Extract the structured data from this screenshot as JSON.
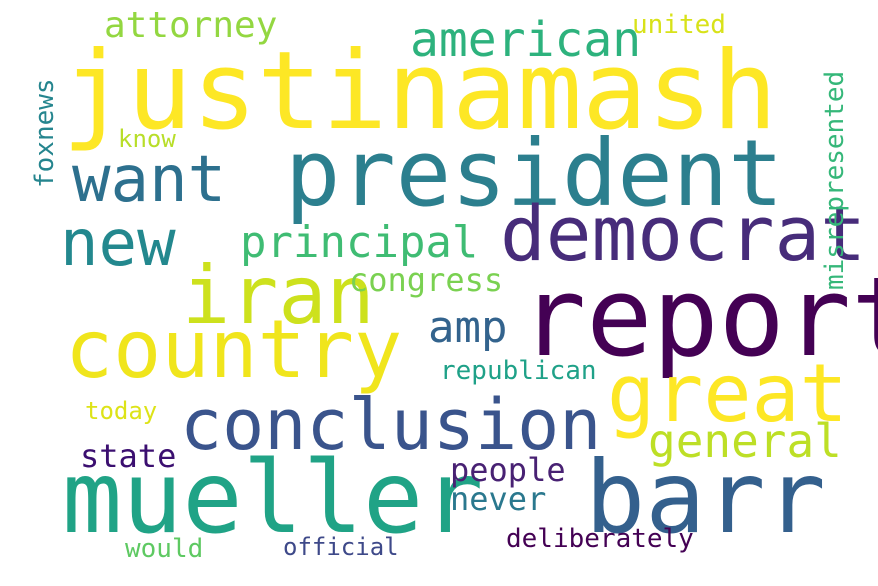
{
  "words": [
    {
      "text": "justinamash",
      "color": "#fde725"
    },
    {
      "text": "president",
      "color": "#2c7f8e"
    },
    {
      "text": "report",
      "color": "#440154"
    },
    {
      "text": "mueller",
      "color": "#20a386"
    },
    {
      "text": "democrat",
      "color": "#472c7a"
    },
    {
      "text": "country",
      "color": "#f0e51c"
    },
    {
      "text": "iran",
      "color": "#cde11d"
    },
    {
      "text": "great",
      "color": "#fde725"
    },
    {
      "text": "conclusion",
      "color": "#3a548c"
    },
    {
      "text": "barr",
      "color": "#34608d"
    },
    {
      "text": "want",
      "color": "#2d708e"
    },
    {
      "text": "new",
      "color": "#23888e"
    },
    {
      "text": "american",
      "color": "#2db27d"
    },
    {
      "text": "principal",
      "color": "#3fbc73"
    },
    {
      "text": "general",
      "color": "#bddf26"
    },
    {
      "text": "attorney",
      "color": "#93d741"
    },
    {
      "text": "amp",
      "color": "#33638d"
    },
    {
      "text": "congress",
      "color": "#7ad151"
    },
    {
      "text": "people",
      "color": "#482173"
    },
    {
      "text": "never",
      "color": "#2a788e"
    },
    {
      "text": "state",
      "color": "#3b0f70"
    },
    {
      "text": "republican",
      "color": "#1fa188"
    },
    {
      "text": "deliberately",
      "color": "#440154"
    },
    {
      "text": "official",
      "color": "#3e4989"
    },
    {
      "text": "would",
      "color": "#5ec962"
    },
    {
      "text": "today",
      "color": "#dde318"
    },
    {
      "text": "united",
      "color": "#d8e219"
    },
    {
      "text": "know",
      "color": "#b8de29"
    },
    {
      "text": "foxnews",
      "color": "#25858e"
    },
    {
      "text": "misrepresented",
      "color": "#35b779"
    }
  ]
}
